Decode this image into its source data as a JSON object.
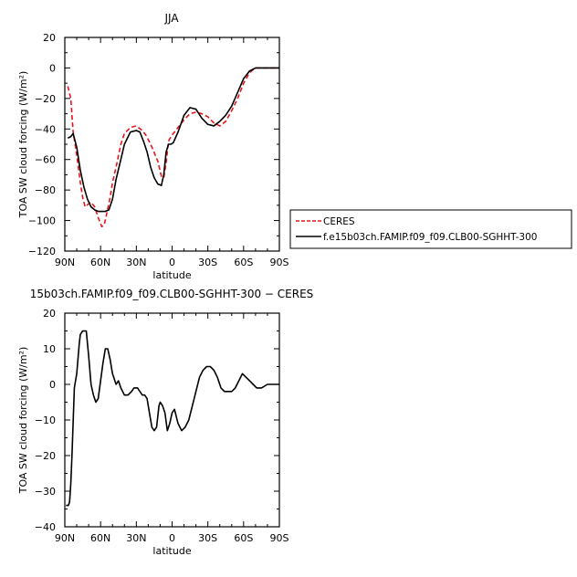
{
  "chart_data": [
    {
      "type": "line",
      "title": "JJA",
      "xlabel": "latitude",
      "ylabel": "TOA SW cloud forcing (W/m²)",
      "x_direction": "north-to-south",
      "xlim": [
        90,
        -90
      ],
      "ylim": [
        -120,
        20
      ],
      "x_ticks": [
        90,
        60,
        30,
        0,
        -30,
        -60,
        -90
      ],
      "x_tick_labels": [
        "90N",
        "60N",
        "30N",
        "0",
        "30S",
        "60S",
        "90S"
      ],
      "y_ticks": [
        20,
        0,
        -20,
        -40,
        -60,
        -80,
        -100,
        -120
      ],
      "y_tick_labels": [
        "20",
        "0",
        "−20",
        "−40",
        "−60",
        "−80",
        "−100",
        "−120"
      ],
      "legend_position": "outside-right",
      "series": [
        {
          "name": "CERES",
          "color": "#e8141c",
          "dash": "dashed",
          "x": [
            87.5,
            85,
            83,
            80,
            77,
            75,
            73,
            70,
            68,
            65,
            62,
            59,
            57,
            55,
            52,
            50,
            47,
            43,
            40,
            35,
            30,
            25,
            22,
            18,
            12,
            9,
            7,
            5,
            3,
            1,
            -1,
            -5,
            -10,
            -15,
            -20,
            -25,
            -30,
            -35,
            -40,
            -45,
            -50,
            -55,
            -60,
            -65,
            -70,
            -75,
            -80,
            -85,
            -90
          ],
          "y": [
            -12,
            -20,
            -42,
            -57,
            -75,
            -85,
            -91,
            -89,
            -88,
            -91,
            -98,
            -104,
            -103,
            -96,
            -85,
            -75,
            -65,
            -50,
            -43,
            -39,
            -38,
            -41,
            -44,
            -50,
            -61,
            -71,
            -72,
            -62,
            -48,
            -45,
            -43,
            -39,
            -34,
            -30,
            -29,
            -30,
            -32,
            -36,
            -38,
            -35,
            -28,
            -20,
            -10,
            -3,
            0,
            0,
            0,
            0,
            0
          ]
        },
        {
          "name": "f.e15b03ch.FAMIP.f09_f09.CLB00-SGHHT-300",
          "color": "#000000",
          "dash": "solid",
          "x": [
            87.5,
            85,
            83,
            80,
            77,
            74,
            71,
            68,
            65,
            62,
            59,
            56,
            53,
            50,
            47,
            43,
            40,
            35,
            30,
            27,
            24,
            21,
            18,
            15,
            12,
            9,
            7,
            5,
            3,
            1,
            -1,
            -5,
            -10,
            -15,
            -20,
            -25,
            -30,
            -35,
            -40,
            -45,
            -50,
            -55,
            -60,
            -65,
            -70,
            -75,
            -80,
            -85,
            -90
          ],
          "y": [
            -46,
            -45,
            -43,
            -52,
            -67,
            -78,
            -86,
            -91,
            -93,
            -94,
            -94,
            -94,
            -93,
            -86,
            -73,
            -60,
            -50,
            -42,
            -41,
            -42,
            -48,
            -55,
            -65,
            -72,
            -76,
            -77,
            -70,
            -55,
            -50,
            -50,
            -49,
            -42,
            -31,
            -26,
            -27,
            -33,
            -37,
            -38,
            -35,
            -31,
            -25,
            -16,
            -7,
            -2,
            0,
            0,
            0,
            0,
            0
          ]
        }
      ]
    },
    {
      "type": "line",
      "title": "15b03ch.FAMIP.f09_f09.CLB00-SGHHT-300 − CERES",
      "xlabel": "latitude",
      "ylabel": "TOA SW cloud forcing (W/m²)",
      "x_direction": "north-to-south",
      "xlim": [
        90,
        -90
      ],
      "ylim": [
        -40,
        20
      ],
      "x_ticks": [
        90,
        60,
        30,
        0,
        -30,
        -60,
        -90
      ],
      "x_tick_labels": [
        "90N",
        "60N",
        "30N",
        "0",
        "30S",
        "60S",
        "90S"
      ],
      "y_ticks": [
        20,
        10,
        0,
        -10,
        -20,
        -30,
        -40
      ],
      "y_tick_labels": [
        "20",
        "10",
        "0",
        "−10",
        "−20",
        "−30",
        "−40"
      ],
      "series": [
        {
          "color": "#000000",
          "dash": "solid",
          "x": [
            89,
            87,
            86,
            85,
            84,
            82,
            80,
            78,
            77,
            75,
            72,
            70,
            68,
            66,
            64,
            62,
            60,
            58,
            56,
            54,
            52,
            50,
            47,
            45,
            43,
            40,
            37,
            34,
            32,
            29,
            27,
            25,
            23,
            21,
            19,
            17,
            15,
            13,
            11,
            10,
            8,
            6,
            4,
            2,
            0,
            -2,
            -5,
            -8,
            -11,
            -14,
            -17,
            -20,
            -23,
            -26,
            -29,
            -32,
            -35,
            -38,
            -41,
            -44,
            -47,
            -50,
            -53,
            -56,
            -59,
            -62,
            -65,
            -68,
            -71,
            -75,
            -80,
            -85,
            -90
          ],
          "y": [
            -34,
            -34,
            -33,
            -28,
            -20,
            -1,
            3,
            11,
            14,
            15,
            15,
            8,
            0,
            -3,
            -5,
            -4,
            1,
            6,
            10,
            10,
            7,
            3,
            0,
            1,
            -1,
            -3,
            -3,
            -2,
            -1,
            -1,
            -2,
            -3,
            -3,
            -4,
            -8,
            -12,
            -13,
            -12,
            -6,
            -5,
            -6,
            -8,
            -13,
            -11,
            -8,
            -7,
            -11,
            -13,
            -12,
            -10,
            -6,
            -2,
            2,
            4,
            5,
            5,
            4,
            2,
            -1,
            -2,
            -2,
            -2,
            -1,
            1,
            3,
            2,
            1,
            0,
            -1,
            -1,
            0,
            0,
            0
          ]
        }
      ]
    }
  ]
}
